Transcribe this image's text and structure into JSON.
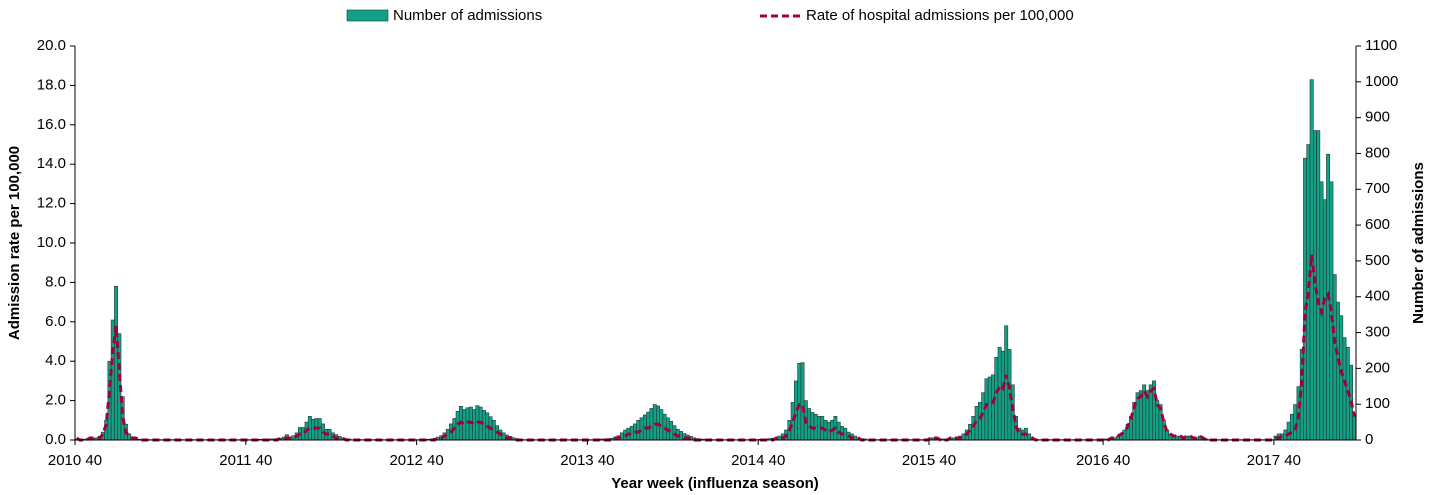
{
  "chart_data": {
    "type": "bar",
    "x_label": "Year week (influenza season)",
    "y_label": "Admission rate per 100,000",
    "y2_label": "Number of admissions",
    "ylim": [
      0,
      20
    ],
    "yticks": [
      {
        "value": 0,
        "label": "0.0"
      },
      {
        "value": 2,
        "label": "2.0"
      },
      {
        "value": 4,
        "label": "4.0"
      },
      {
        "value": 6,
        "label": "6.0"
      },
      {
        "value": 8,
        "label": "8.0"
      },
      {
        "value": 10,
        "label": "10.0"
      },
      {
        "value": 12,
        "label": "12.0"
      },
      {
        "value": 14,
        "label": "14.0"
      },
      {
        "value": 16,
        "label": "16.0"
      },
      {
        "value": 18,
        "label": "18.0"
      },
      {
        "value": 20,
        "label": "20.0"
      }
    ],
    "y2lim": [
      0,
      1100
    ],
    "y2ticks": [
      0,
      100,
      200,
      300,
      400,
      500,
      600,
      700,
      800,
      900,
      1000,
      1100
    ],
    "legend": "top",
    "categories": [
      "2010 40",
      null,
      null,
      null,
      null,
      null,
      null,
      null,
      null,
      null,
      null,
      null,
      null,
      null,
      null,
      null,
      null,
      null,
      null,
      null,
      null,
      null,
      null,
      null,
      null,
      null,
      null,
      null,
      null,
      null,
      null,
      null,
      null,
      null,
      null,
      null,
      null,
      null,
      null,
      null,
      null,
      null,
      null,
      null,
      null,
      null,
      null,
      null,
      null,
      null,
      null,
      null,
      "2011 40",
      null,
      null,
      null,
      null,
      null,
      null,
      null,
      null,
      null,
      null,
      null,
      null,
      null,
      null,
      null,
      null,
      null,
      null,
      null,
      null,
      null,
      null,
      null,
      null,
      null,
      null,
      null,
      null,
      null,
      null,
      null,
      null,
      null,
      null,
      null,
      null,
      null,
      null,
      null,
      null,
      null,
      null,
      null,
      null,
      null,
      null,
      null,
      null,
      null,
      null,
      null,
      "2012 40",
      null,
      null,
      null,
      null,
      null,
      null,
      null,
      null,
      null,
      null,
      null,
      null,
      null,
      null,
      null,
      null,
      null,
      null,
      null,
      null,
      null,
      null,
      null,
      null,
      null,
      null,
      null,
      null,
      null,
      null,
      null,
      null,
      null,
      null,
      null,
      null,
      null,
      null,
      null,
      null,
      null,
      null,
      null,
      null,
      null,
      null,
      null,
      null,
      null,
      null,
      null,
      "2013 40",
      null,
      null,
      null,
      null,
      null,
      null,
      null,
      null,
      null,
      null,
      null,
      null,
      null,
      null,
      null,
      null,
      null,
      null,
      null,
      null,
      null,
      null,
      null,
      null,
      null,
      null,
      null,
      null,
      null,
      null,
      null,
      null,
      null,
      null,
      null,
      null,
      null,
      null,
      null,
      null,
      null,
      null,
      null,
      null,
      null,
      null,
      null,
      null,
      null,
      null,
      null,
      "2014 40",
      null,
      null,
      null,
      null,
      null,
      null,
      null,
      null,
      null,
      null,
      null,
      null,
      null,
      null,
      null,
      null,
      null,
      null,
      null,
      null,
      null,
      null,
      null,
      null,
      null,
      null,
      null,
      null,
      null,
      null,
      null,
      null,
      null,
      null,
      null,
      null,
      null,
      null,
      null,
      null,
      null,
      null,
      null,
      null,
      null,
      null,
      null,
      null,
      null,
      null,
      null,
      "2015 40",
      null,
      null,
      null,
      null,
      null,
      null,
      null,
      null,
      null,
      null,
      null,
      null,
      null,
      null,
      null,
      null,
      null,
      null,
      null,
      null,
      null,
      null,
      null,
      null,
      null,
      null,
      null,
      null,
      null,
      null,
      null,
      null,
      null,
      null,
      null,
      null,
      null,
      null,
      null,
      null,
      null,
      null,
      null,
      null,
      null,
      null,
      null,
      null,
      null,
      null,
      null,
      null,
      "2016 40",
      null,
      null,
      null,
      null,
      null,
      null,
      null,
      null,
      null,
      null,
      null,
      null,
      null,
      null,
      null,
      null,
      null,
      null,
      null,
      null,
      null,
      null,
      null,
      null,
      null,
      null,
      null,
      null,
      null,
      null,
      null,
      null,
      null,
      null,
      null,
      null,
      null,
      null,
      null,
      null,
      null,
      null,
      null,
      null,
      null,
      null,
      null,
      null,
      null,
      null,
      null,
      "2017 40",
      null,
      null,
      null,
      null,
      null,
      null,
      null,
      null,
      null,
      null,
      null,
      null,
      null,
      null,
      null,
      null,
      null,
      null,
      null,
      null,
      null,
      null,
      null,
      null
    ],
    "series": [
      {
        "name": "Number of admissions",
        "type": "bar",
        "axis": "y2",
        "color": "#14a085",
        "values": [
          3,
          1,
          2,
          3,
          4,
          5,
          6,
          10,
          22,
          55,
          220,
          335,
          429,
          297,
          121,
          44,
          17,
          8,
          4,
          2,
          1,
          1,
          1,
          1,
          1,
          1,
          1,
          1,
          1,
          1,
          1,
          1,
          1,
          1,
          1,
          1,
          1,
          1,
          1,
          1,
          1,
          1,
          1,
          1,
          1,
          1,
          1,
          1,
          1,
          1,
          1,
          1,
          1,
          1,
          1,
          2,
          2,
          2,
          2,
          3,
          3,
          4,
          5,
          8,
          15,
          8,
          12,
          20,
          35,
          35,
          50,
          66,
          58,
          60,
          60,
          45,
          30,
          30,
          20,
          15,
          10,
          6,
          4,
          3,
          1,
          1,
          1,
          1,
          1,
          1,
          1,
          1,
          1,
          1,
          1,
          1,
          1,
          1,
          1,
          1,
          1,
          1,
          1,
          1,
          1,
          1,
          2,
          2,
          3,
          5,
          8,
          12,
          20,
          30,
          45,
          60,
          80,
          94,
          85,
          90,
          92,
          85,
          96,
          92,
          83,
          76,
          65,
          55,
          40,
          28,
          20,
          14,
          10,
          6,
          4,
          3,
          1,
          1,
          1,
          1,
          1,
          1,
          1,
          1,
          1,
          1,
          1,
          1,
          1,
          1,
          1,
          1,
          1,
          1,
          1,
          1,
          1,
          1,
          2,
          2,
          3,
          3,
          4,
          5,
          8,
          12,
          20,
          28,
          33,
          38,
          45,
          55,
          62,
          70,
          78,
          88,
          99,
          95,
          85,
          72,
          62,
          52,
          40,
          30,
          24,
          18,
          14,
          10,
          6,
          4,
          3,
          2,
          1,
          1,
          1,
          1,
          1,
          1,
          1,
          1,
          1,
          1,
          1,
          1,
          1,
          1,
          1,
          1,
          2,
          2,
          3,
          4,
          5,
          6,
          11,
          17,
          28,
          55,
          105,
          165,
          214,
          216,
          110,
          88,
          77,
          72,
          66,
          66,
          55,
          50,
          55,
          66,
          50,
          38,
          33,
          22,
          17,
          11,
          6,
          4,
          3,
          1,
          1,
          1,
          1,
          1,
          1,
          1,
          1,
          1,
          1,
          1,
          1,
          1,
          1,
          1,
          1,
          1,
          1,
          1,
          6,
          6,
          6,
          3,
          3,
          3,
          6,
          6,
          6,
          11,
          17,
          28,
          44,
          66,
          94,
          105,
          132,
          171,
          176,
          182,
          231,
          259,
          248,
          319,
          253,
          154,
          66,
          33,
          28,
          33,
          17,
          6,
          3,
          1,
          1,
          1,
          1,
          1,
          1,
          1,
          1,
          1,
          1,
          1,
          1,
          1,
          1,
          1,
          1,
          1,
          1,
          1,
          1,
          3,
          3,
          6,
          6,
          11,
          17,
          28,
          44,
          66,
          105,
          132,
          138,
          154,
          138,
          154,
          165,
          110,
          99,
          55,
          28,
          17,
          11,
          11,
          11,
          6,
          11,
          11,
          6,
          6,
          11,
          6,
          3,
          1,
          1,
          1,
          1,
          1,
          1,
          1,
          1,
          1,
          1,
          1,
          1,
          1,
          1,
          1,
          1,
          1,
          1,
          1,
          1,
          11,
          17,
          17,
          28,
          50,
          72,
          99,
          149,
          253,
          787,
          825,
          1006,
          864,
          864,
          721,
          671,
          798,
          721,
          462,
          385,
          347,
          286,
          259,
          209,
          66
        ]
      },
      {
        "name": "Rate of hospital admissions per 100,000",
        "type": "line",
        "axis": "y",
        "color": "#a0003c",
        "values": [
          0.1,
          0,
          0,
          0,
          0.1,
          0.1,
          0.1,
          0.1,
          0.3,
          0.8,
          2.5,
          4.5,
          5.8,
          3.5,
          1.2,
          0.4,
          0.2,
          0.1,
          0.1,
          0,
          0,
          0,
          0,
          0,
          0,
          0,
          0,
          0,
          0,
          0,
          0,
          0,
          0,
          0,
          0,
          0,
          0,
          0,
          0,
          0,
          0,
          0,
          0,
          0,
          0,
          0,
          0,
          0,
          0,
          0,
          0,
          0,
          0,
          0,
          0,
          0,
          0,
          0,
          0,
          0,
          0,
          0,
          0.1,
          0.1,
          0.1,
          0.1,
          0.1,
          0.2,
          0.3,
          0.3,
          0.5,
          0.6,
          0.6,
          0.6,
          0.6,
          0.4,
          0.3,
          0.3,
          0.2,
          0.1,
          0.1,
          0.1,
          0,
          0,
          0,
          0,
          0,
          0,
          0,
          0,
          0,
          0,
          0,
          0,
          0,
          0,
          0,
          0,
          0,
          0,
          0,
          0,
          0,
          0,
          0,
          0,
          0,
          0,
          0,
          0,
          0.1,
          0.1,
          0.2,
          0.3,
          0.4,
          0.6,
          0.8,
          0.9,
          0.8,
          0.9,
          0.9,
          0.8,
          0.9,
          0.9,
          0.8,
          0.7,
          0.6,
          0.5,
          0.4,
          0.3,
          0.2,
          0.1,
          0.1,
          0.1,
          0,
          0,
          0,
          0,
          0,
          0,
          0,
          0,
          0,
          0,
          0,
          0,
          0,
          0,
          0,
          0,
          0,
          0,
          0,
          0,
          0,
          0,
          0,
          0,
          0,
          0,
          0,
          0,
          0,
          0,
          0.1,
          0.1,
          0.2,
          0.2,
          0.3,
          0.3,
          0.4,
          0.4,
          0.5,
          0.6,
          0.6,
          0.7,
          0.8,
          0.8,
          0.7,
          0.6,
          0.5,
          0.4,
          0.3,
          0.2,
          0.2,
          0.1,
          0.1,
          0.1,
          0,
          0,
          0,
          0,
          0,
          0,
          0,
          0,
          0,
          0,
          0,
          0,
          0,
          0,
          0,
          0,
          0,
          0,
          0,
          0,
          0,
          0,
          0,
          0,
          0,
          0.1,
          0.1,
          0.1,
          0.2,
          0.5,
          0.9,
          1.4,
          1.8,
          1.8,
          0.9,
          0.7,
          0.6,
          0.6,
          0.6,
          0.6,
          0.5,
          0.4,
          0.5,
          0.6,
          0.4,
          0.3,
          0.3,
          0.2,
          0.1,
          0.1,
          0.1,
          0,
          0,
          0,
          0,
          0,
          0,
          0,
          0,
          0,
          0,
          0,
          0,
          0,
          0,
          0,
          0,
          0,
          0,
          0,
          0,
          0,
          0.1,
          0.1,
          0.1,
          0,
          0,
          0,
          0.1,
          0.1,
          0.1,
          0.1,
          0.2,
          0.3,
          0.5,
          0.7,
          1.0,
          1.1,
          1.4,
          1.8,
          1.8,
          1.9,
          2.4,
          2.7,
          2.6,
          3.3,
          2.6,
          1.6,
          0.7,
          0.3,
          0.3,
          0.3,
          0.2,
          0.1,
          0,
          0,
          0,
          0,
          0,
          0,
          0,
          0,
          0,
          0,
          0,
          0,
          0,
          0,
          0,
          0,
          0,
          0,
          0,
          0,
          0,
          0,
          0,
          0.1,
          0.1,
          0.2,
          0.3,
          0.4,
          0.7,
          1.1,
          1.7,
          2.1,
          2.2,
          2.5,
          2.2,
          2.5,
          2.6,
          1.8,
          1.6,
          0.9,
          0.4,
          0.3,
          0.2,
          0.2,
          0.2,
          0.1,
          0.2,
          0.2,
          0.1,
          0.1,
          0.2,
          0.1,
          0,
          0,
          0,
          0,
          0,
          0,
          0,
          0,
          0,
          0,
          0,
          0,
          0,
          0,
          0,
          0,
          0,
          0,
          0,
          0,
          0,
          0.1,
          0.1,
          0.2,
          0.2,
          0.3,
          0.4,
          0.5,
          1.2,
          3.0,
          6.5,
          7.5,
          9.4,
          8.0,
          7.0,
          6.5,
          7.2,
          7.4,
          6.5,
          5.0,
          4.2,
          3.5,
          3.0,
          2.5,
          2.0,
          1.2
        ]
      }
    ]
  }
}
